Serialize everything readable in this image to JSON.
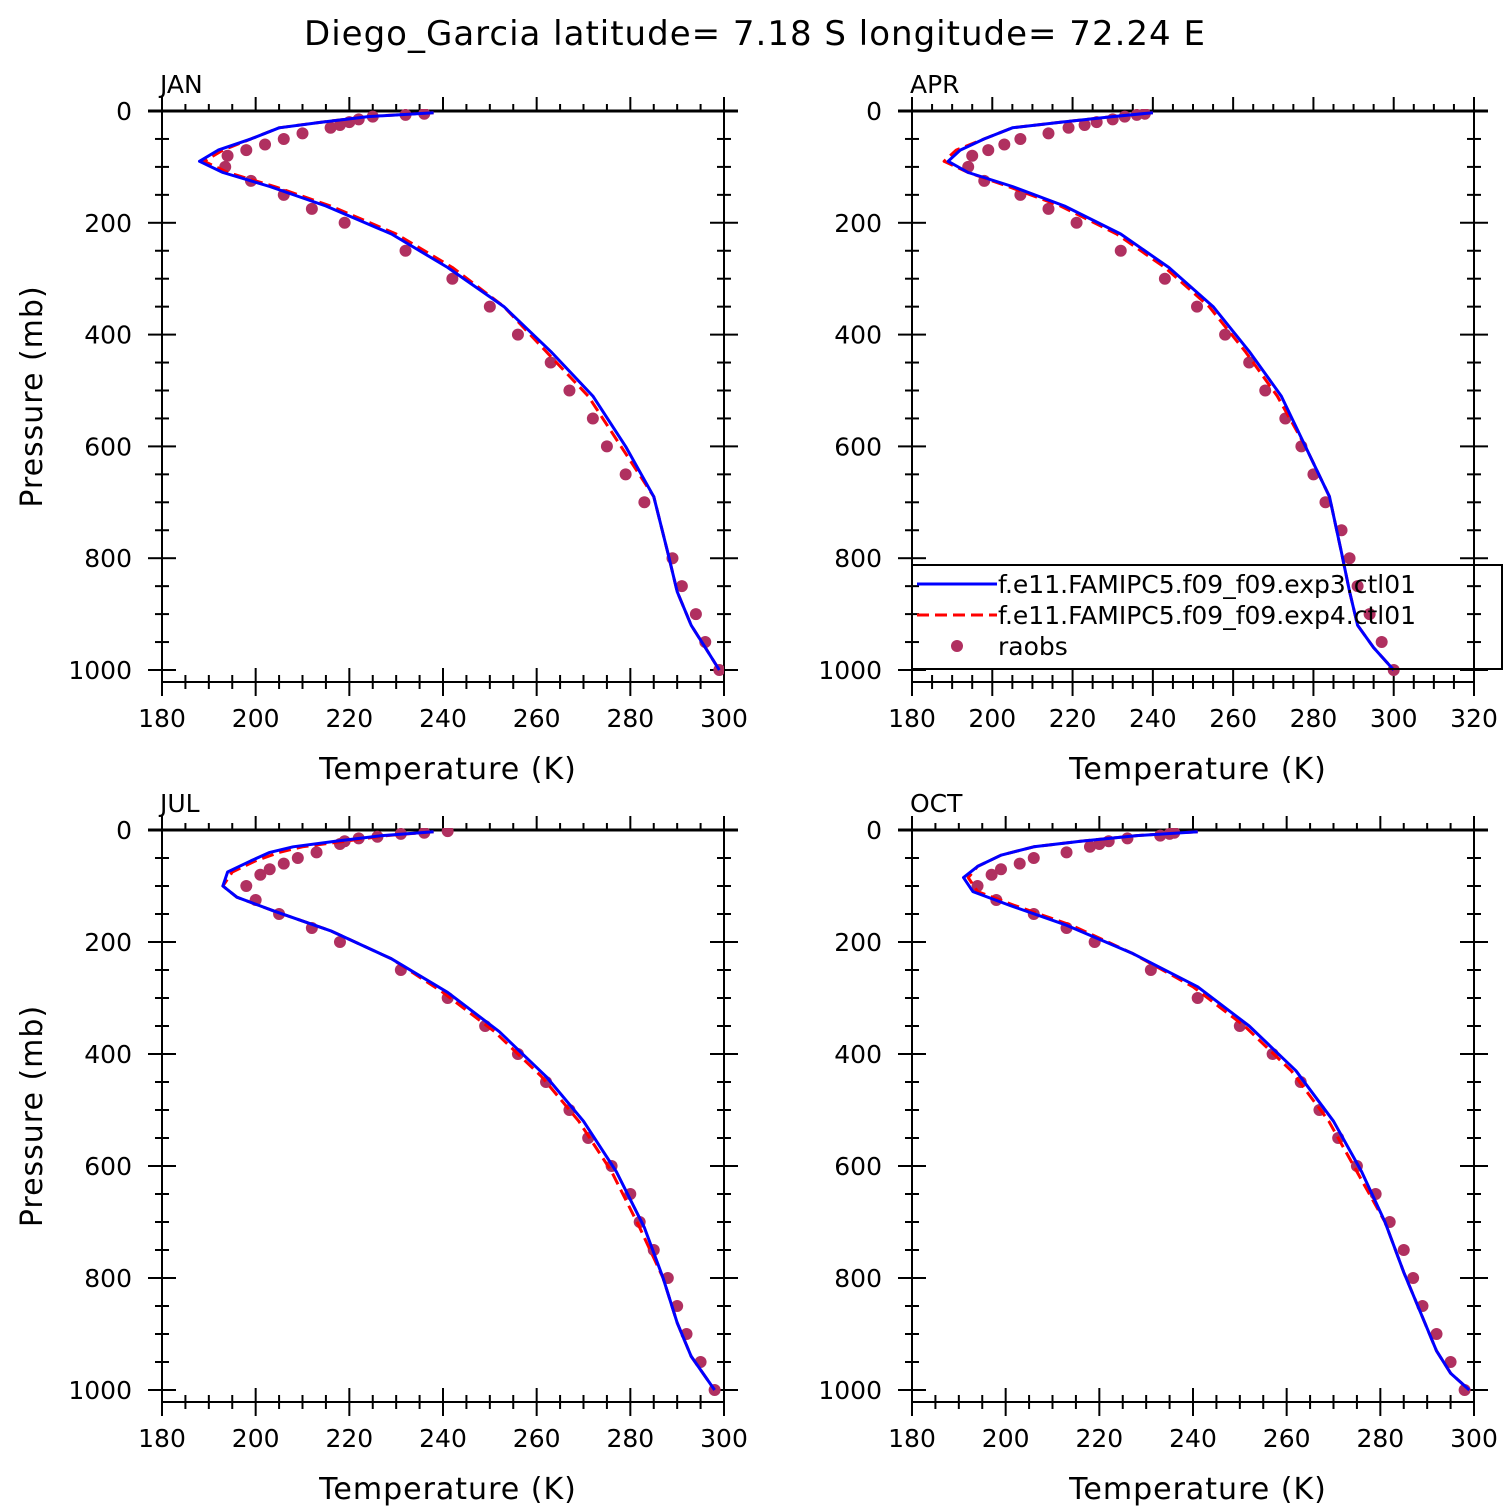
{
  "figure": {
    "title": "Diego_Garcia  latitude= 7.18 S longitude= 72.24 E"
  },
  "colors": {
    "exp3": "#0000ff",
    "exp4": "#ff0000",
    "raobs": "#b03060"
  },
  "chart_data": [
    {
      "type": "line",
      "panel": "JAN",
      "title": "JAN",
      "xlabel": "Temperature (K)",
      "ylabel": "Pressure (mb)",
      "xlim": [
        180,
        300
      ],
      "ylim": [
        1000,
        0
      ],
      "xticks": [
        180,
        200,
        220,
        240,
        260,
        280,
        300
      ],
      "yticks": [
        0,
        200,
        400,
        600,
        800,
        1000
      ],
      "legend": false,
      "series": [
        {
          "key": "exp3",
          "style": "solid",
          "x": [
            238,
            224,
            214,
            205,
            199,
            192,
            188,
            193,
            203,
            215,
            229,
            241,
            253,
            263,
            272,
            279,
            285,
            288,
            290,
            293,
            296,
            299
          ],
          "y": [
            3,
            10,
            20,
            30,
            50,
            70,
            90,
            110,
            135,
            170,
            220,
            280,
            350,
            430,
            510,
            600,
            690,
            790,
            860,
            920,
            960,
            1000
          ]
        },
        {
          "key": "exp4",
          "style": "dashed",
          "x": [
            238,
            224,
            214,
            205,
            199,
            193,
            189,
            194,
            204,
            216,
            230,
            242,
            253,
            262,
            271,
            278,
            285,
            288,
            290,
            293,
            296,
            299
          ],
          "y": [
            3,
            10,
            20,
            30,
            50,
            70,
            90,
            110,
            135,
            170,
            220,
            280,
            350,
            430,
            510,
            600,
            690,
            790,
            860,
            920,
            960,
            1000
          ]
        },
        {
          "key": "raobs",
          "style": "markers",
          "x": [
            236,
            232,
            225,
            222,
            220,
            218,
            216,
            210,
            206,
            202,
            198,
            194,
            193.5,
            199,
            206,
            212,
            219,
            232,
            242,
            250,
            256,
            263,
            267,
            272,
            275,
            279,
            283,
            289,
            291,
            294,
            296,
            299
          ],
          "y": [
            5,
            7,
            10,
            15,
            20,
            25,
            30,
            40,
            50,
            60,
            70,
            80,
            100,
            125,
            150,
            175,
            200,
            250,
            300,
            350,
            400,
            450,
            500,
            550,
            600,
            650,
            700,
            800,
            850,
            900,
            950,
            1000
          ]
        }
      ]
    },
    {
      "type": "line",
      "panel": "APR",
      "title": "APR",
      "xlabel": "Temperature (K)",
      "ylabel": "",
      "xlim": [
        180,
        320
      ],
      "ylim": [
        1000,
        0
      ],
      "xticks": [
        180,
        200,
        220,
        240,
        260,
        280,
        300,
        320
      ],
      "yticks": [
        0,
        200,
        400,
        600,
        800,
        1000
      ],
      "legend": true,
      "legend_entries": [
        {
          "key": "exp3",
          "label": "f.e11.FAMIPC5.f09_f09.exp3.ctl01"
        },
        {
          "key": "exp4",
          "label": "f.e11.FAMIPC5.f09_f09.exp4.ctl01"
        },
        {
          "key": "raobs",
          "label": "raobs"
        }
      ],
      "series": [
        {
          "key": "exp3",
          "style": "solid",
          "x": [
            240,
            230,
            217,
            205,
            198,
            192,
            189,
            194,
            205,
            218,
            232,
            244,
            255,
            264,
            272,
            278,
            284,
            287,
            289,
            291,
            295,
            300
          ],
          "y": [
            3,
            10,
            20,
            30,
            50,
            70,
            90,
            110,
            135,
            170,
            220,
            280,
            350,
            430,
            510,
            600,
            690,
            790,
            860,
            920,
            960,
            1000
          ]
        },
        {
          "key": "exp4",
          "style": "dashed",
          "x": [
            240,
            230,
            217,
            205,
            198,
            191,
            188,
            194,
            204,
            217,
            231,
            243,
            254,
            263,
            271,
            278,
            284,
            287,
            289,
            291,
            295,
            300
          ],
          "y": [
            3,
            10,
            20,
            30,
            50,
            70,
            90,
            110,
            135,
            170,
            220,
            280,
            350,
            430,
            510,
            600,
            690,
            790,
            860,
            920,
            960,
            1000
          ]
        },
        {
          "key": "raobs",
          "style": "markers",
          "x": [
            238,
            236,
            233,
            230,
            226,
            223,
            219,
            214,
            207,
            203,
            199,
            195,
            194,
            198,
            207,
            214,
            221,
            232,
            243,
            251,
            258,
            264,
            268,
            273,
            277,
            280,
            283,
            287,
            289,
            291,
            294,
            297,
            300
          ],
          "y": [
            5,
            7,
            10,
            15,
            20,
            25,
            30,
            40,
            50,
            60,
            70,
            80,
            100,
            125,
            150,
            175,
            200,
            250,
            300,
            350,
            400,
            450,
            500,
            550,
            600,
            650,
            700,
            750,
            800,
            850,
            900,
            950,
            1000
          ]
        }
      ]
    },
    {
      "type": "line",
      "panel": "JUL",
      "title": "JUL",
      "xlabel": "Temperature (K)",
      "ylabel": "Pressure (mb)",
      "xlim": [
        180,
        300
      ],
      "ylim": [
        1000,
        0
      ],
      "xticks": [
        180,
        200,
        220,
        240,
        260,
        280,
        300
      ],
      "yticks": [
        0,
        200,
        400,
        600,
        800,
        1000
      ],
      "legend": false,
      "series": [
        {
          "key": "exp3",
          "style": "solid",
          "x": [
            238,
            227,
            217,
            208,
            203,
            199,
            194,
            193,
            196,
            204,
            216,
            229,
            241,
            252,
            262,
            270,
            277,
            283,
            287,
            290,
            293,
            298
          ],
          "y": [
            3,
            10,
            20,
            30,
            40,
            55,
            75,
            100,
            120,
            145,
            180,
            230,
            290,
            360,
            440,
            520,
            610,
            710,
            800,
            880,
            940,
            1000
          ]
        },
        {
          "key": "exp4",
          "style": "dashed",
          "x": [
            238,
            228,
            219,
            210,
            205,
            200,
            195,
            193,
            196,
            204,
            216,
            229,
            240,
            251,
            261,
            269,
            276,
            282,
            287,
            290,
            293,
            298
          ],
          "y": [
            3,
            10,
            20,
            30,
            40,
            55,
            75,
            100,
            120,
            145,
            180,
            230,
            290,
            360,
            440,
            520,
            610,
            710,
            800,
            880,
            940,
            1000
          ]
        },
        {
          "key": "raobs",
          "style": "markers",
          "x": [
            241,
            236,
            231,
            226,
            222,
            219,
            218,
            213,
            209,
            206,
            203,
            201,
            198,
            200,
            205,
            212,
            218,
            231,
            241,
            249,
            256,
            262,
            267,
            271,
            276,
            280,
            282,
            285,
            288,
            290,
            292,
            295,
            298
          ],
          "y": [
            2,
            5,
            7,
            12,
            15,
            20,
            25,
            40,
            50,
            60,
            70,
            80,
            100,
            125,
            150,
            175,
            200,
            250,
            300,
            350,
            400,
            450,
            500,
            550,
            600,
            650,
            700,
            750,
            800,
            850,
            900,
            950,
            1000
          ]
        }
      ]
    },
    {
      "type": "line",
      "panel": "OCT",
      "title": "OCT",
      "xlabel": "Temperature (K)",
      "ylabel": "",
      "xlim": [
        180,
        300
      ],
      "ylim": [
        1000,
        0
      ],
      "xticks": [
        180,
        200,
        220,
        240,
        260,
        280,
        300
      ],
      "yticks": [
        0,
        200,
        400,
        600,
        800,
        1000
      ],
      "legend": false,
      "series": [
        {
          "key": "exp3",
          "style": "solid",
          "x": [
            241,
            228,
            216,
            206,
            199,
            194,
            191,
            193,
            201,
            213,
            227,
            241,
            252,
            262,
            270,
            276,
            281,
            285,
            289,
            292,
            295,
            299
          ],
          "y": [
            3,
            10,
            20,
            30,
            45,
            65,
            85,
            110,
            135,
            170,
            220,
            280,
            350,
            430,
            520,
            610,
            700,
            790,
            870,
            930,
            970,
            1000
          ]
        },
        {
          "key": "exp4",
          "style": "dashed",
          "x": [
            241,
            228,
            216,
            206,
            199,
            194,
            192,
            194,
            202,
            214,
            227,
            240,
            251,
            261,
            269,
            275,
            281,
            285,
            289,
            292,
            295,
            299
          ],
          "y": [
            3,
            10,
            20,
            30,
            45,
            65,
            85,
            110,
            135,
            170,
            220,
            280,
            350,
            430,
            520,
            610,
            700,
            790,
            870,
            930,
            970,
            1000
          ]
        },
        {
          "key": "raobs",
          "style": "markers",
          "x": [
            236,
            235,
            233,
            226,
            222,
            220,
            218,
            213,
            206,
            203,
            199,
            197,
            194,
            198,
            206,
            213,
            219,
            231,
            241,
            250,
            257,
            263,
            267,
            271,
            275,
            279,
            282,
            285,
            287,
            289,
            292,
            295,
            298
          ],
          "y": [
            5,
            7,
            10,
            15,
            20,
            25,
            30,
            40,
            50,
            60,
            70,
            80,
            100,
            125,
            150,
            175,
            200,
            250,
            300,
            350,
            400,
            450,
            500,
            550,
            600,
            650,
            700,
            750,
            800,
            850,
            900,
            950,
            1000
          ]
        }
      ]
    }
  ]
}
